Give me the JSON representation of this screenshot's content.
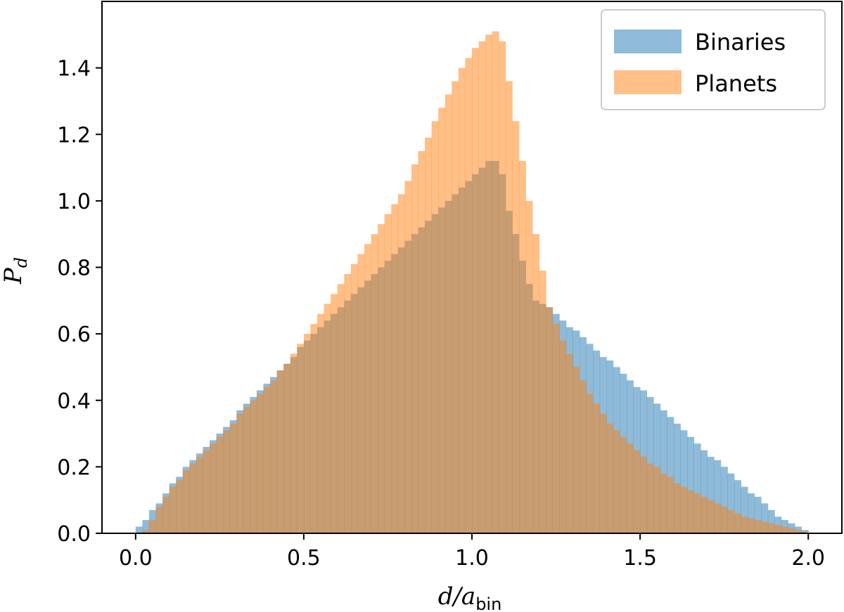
{
  "chart_data": {
    "type": "histogram",
    "xlabel": "d/a",
    "xlabel_subscript": "bin",
    "ylabel": "P",
    "ylabel_subscript": "d",
    "xlim": [
      -0.1,
      2.1
    ],
    "ylim": [
      0.0,
      1.6
    ],
    "xticks": [
      "0.0",
      "0.5",
      "1.0",
      "1.5",
      "2.0"
    ],
    "yticks": [
      "0.0",
      "0.2",
      "0.4",
      "0.6",
      "0.8",
      "1.0",
      "1.2",
      "1.4"
    ],
    "grid": false,
    "legend_position": "top-right",
    "bin_range": [
      0.0,
      2.0
    ],
    "series": [
      {
        "name": "Binaries",
        "color": "#1f77b4",
        "opacity": 0.5,
        "values": [
          0.02,
          0.04,
          0.07,
          0.09,
          0.12,
          0.15,
          0.17,
          0.2,
          0.22,
          0.24,
          0.26,
          0.28,
          0.3,
          0.32,
          0.34,
          0.37,
          0.39,
          0.41,
          0.43,
          0.45,
          0.47,
          0.49,
          0.51,
          0.53,
          0.56,
          0.58,
          0.6,
          0.62,
          0.64,
          0.66,
          0.68,
          0.7,
          0.72,
          0.74,
          0.76,
          0.78,
          0.8,
          0.82,
          0.84,
          0.86,
          0.88,
          0.9,
          0.92,
          0.94,
          0.96,
          0.98,
          1.0,
          1.02,
          1.04,
          1.06,
          1.08,
          1.1,
          1.12,
          1.12,
          1.08,
          0.97,
          0.9,
          0.82,
          0.75,
          0.7,
          0.69,
          0.68,
          0.66,
          0.64,
          0.62,
          0.61,
          0.59,
          0.57,
          0.55,
          0.53,
          0.52,
          0.5,
          0.48,
          0.46,
          0.44,
          0.43,
          0.41,
          0.39,
          0.37,
          0.35,
          0.33,
          0.31,
          0.29,
          0.27,
          0.25,
          0.23,
          0.22,
          0.2,
          0.18,
          0.16,
          0.14,
          0.12,
          0.11,
          0.09,
          0.07,
          0.05,
          0.04,
          0.03,
          0.02,
          0.01
        ]
      },
      {
        "name": "Planets",
        "color": "#ff7f0e",
        "opacity": 0.5,
        "values": [
          0.0,
          0.01,
          0.04,
          0.08,
          0.11,
          0.14,
          0.16,
          0.19,
          0.21,
          0.23,
          0.25,
          0.27,
          0.29,
          0.31,
          0.33,
          0.36,
          0.38,
          0.4,
          0.42,
          0.44,
          0.46,
          0.49,
          0.51,
          0.54,
          0.57,
          0.6,
          0.63,
          0.66,
          0.69,
          0.72,
          0.75,
          0.78,
          0.81,
          0.84,
          0.87,
          0.9,
          0.93,
          0.96,
          0.99,
          1.02,
          1.06,
          1.11,
          1.15,
          1.19,
          1.24,
          1.28,
          1.32,
          1.36,
          1.4,
          1.43,
          1.46,
          1.48,
          1.5,
          1.51,
          1.48,
          1.36,
          1.24,
          1.12,
          1.0,
          0.9,
          0.79,
          0.68,
          0.63,
          0.58,
          0.54,
          0.5,
          0.46,
          0.42,
          0.39,
          0.36,
          0.33,
          0.31,
          0.29,
          0.27,
          0.25,
          0.23,
          0.21,
          0.2,
          0.18,
          0.17,
          0.15,
          0.14,
          0.13,
          0.12,
          0.11,
          0.1,
          0.09,
          0.08,
          0.07,
          0.06,
          0.05,
          0.045,
          0.04,
          0.035,
          0.03,
          0.025,
          0.02,
          0.015,
          0.01,
          0.005
        ]
      }
    ]
  }
}
